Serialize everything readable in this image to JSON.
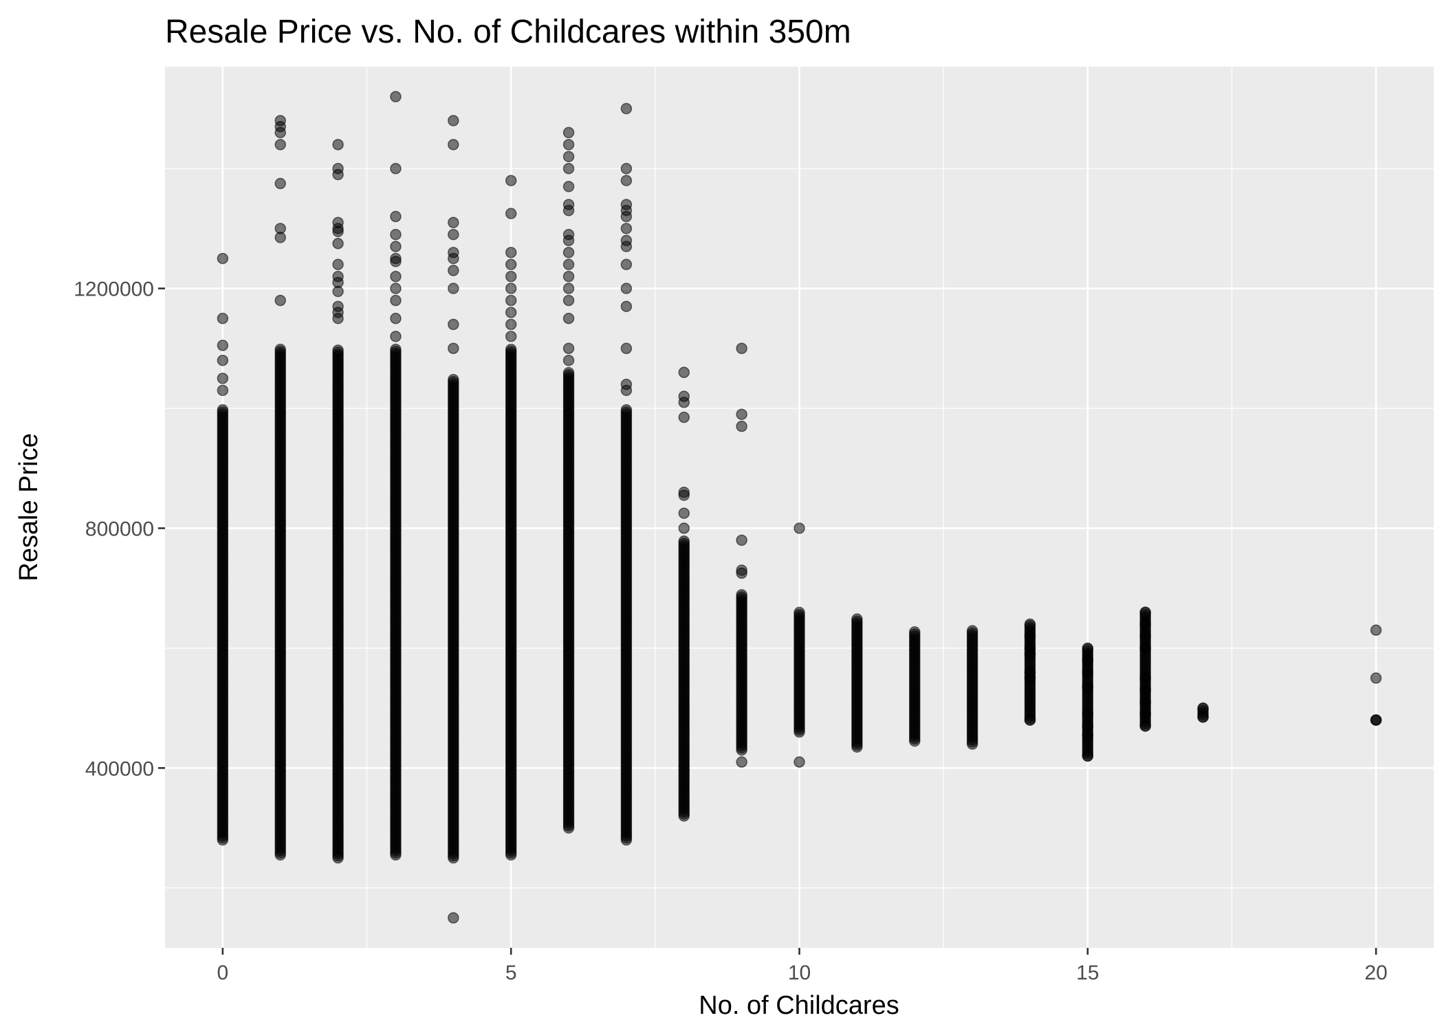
{
  "chart_data": {
    "type": "scatter",
    "title": "Resale Price vs. No. of Childcares within 350m",
    "xlabel": "No. of Childcares",
    "ylabel": "Resale Price",
    "xlim": [
      -1,
      21
    ],
    "ylim": [
      100000,
      1570000
    ],
    "x_ticks": [
      0,
      5,
      10,
      15,
      20
    ],
    "x_tick_labels": [
      "0",
      "5",
      "10",
      "15",
      "20"
    ],
    "y_ticks": [
      400000,
      800000,
      1200000
    ],
    "y_tick_labels": [
      "400000",
      "800000",
      "1200000"
    ],
    "grid": true,
    "legend": "none",
    "point_color": "#000000",
    "point_alpha": 0.5,
    "panel_color": "#ebebeb",
    "columns": [
      {
        "x": 0,
        "dense_range": [
          280000,
          1000000
        ],
        "points": [
          1250000,
          1150000,
          1105000,
          1080000,
          1050000,
          1030000
        ]
      },
      {
        "x": 1,
        "dense_range": [
          255000,
          1100000
        ],
        "points": [
          1480000,
          1470000,
          1460000,
          1440000,
          1375000,
          1300000,
          1285000,
          1180000
        ]
      },
      {
        "x": 2,
        "dense_range": [
          250000,
          1100000
        ],
        "points": [
          1440000,
          1400000,
          1390000,
          1310000,
          1300000,
          1295000,
          1275000,
          1240000,
          1220000,
          1210000,
          1195000,
          1170000,
          1160000,
          1150000
        ]
      },
      {
        "x": 3,
        "dense_range": [
          255000,
          1100000
        ],
        "points": [
          1520000,
          1400000,
          1320000,
          1290000,
          1270000,
          1250000,
          1245000,
          1220000,
          1200000,
          1180000,
          1150000,
          1120000
        ]
      },
      {
        "x": 4,
        "dense_range": [
          250000,
          1050000
        ],
        "points": [
          1480000,
          1440000,
          1310000,
          1290000,
          1260000,
          1250000,
          1230000,
          1200000,
          1140000,
          1100000,
          150000
        ]
      },
      {
        "x": 5,
        "dense_range": [
          255000,
          1100000
        ],
        "points": [
          1380000,
          1325000,
          1260000,
          1240000,
          1220000,
          1200000,
          1180000,
          1160000,
          1140000,
          1120000
        ]
      },
      {
        "x": 6,
        "dense_range": [
          300000,
          1060000
        ],
        "points": [
          1460000,
          1440000,
          1420000,
          1400000,
          1370000,
          1340000,
          1330000,
          1290000,
          1280000,
          1260000,
          1240000,
          1220000,
          1200000,
          1180000,
          1150000,
          1100000,
          1080000
        ]
      },
      {
        "x": 7,
        "dense_range": [
          280000,
          1000000
        ],
        "points": [
          1500000,
          1400000,
          1380000,
          1340000,
          1330000,
          1320000,
          1300000,
          1280000,
          1270000,
          1240000,
          1200000,
          1170000,
          1100000,
          1040000,
          1030000
        ]
      },
      {
        "x": 8,
        "dense_range": [
          320000,
          780000
        ],
        "points": [
          1060000,
          1020000,
          1010000,
          985000,
          860000,
          855000,
          825000,
          800000
        ]
      },
      {
        "x": 9,
        "dense_range": [
          430000,
          690000
        ],
        "points": [
          1100000,
          990000,
          970000,
          780000,
          730000,
          725000,
          410000
        ]
      },
      {
        "x": 10,
        "dense_range": [
          460000,
          660000
        ],
        "points": [
          800000,
          410000
        ]
      },
      {
        "x": 11,
        "dense_range": [
          435000,
          650000
        ],
        "points": []
      },
      {
        "x": 12,
        "dense_range": [
          445000,
          630000
        ],
        "points": []
      },
      {
        "x": 13,
        "dense_range": [
          440000,
          630000
        ],
        "points": []
      },
      {
        "x": 14,
        "dense_range": [
          480000,
          640000
        ],
        "points": [
          640000,
          620000,
          600000,
          590000,
          560000,
          550000,
          480000
        ]
      },
      {
        "x": 15,
        "dense_range": [
          420000,
          600000
        ],
        "points": [
          600000,
          580000,
          560000,
          535000,
          490000,
          470000,
          455000,
          420000
        ]
      },
      {
        "x": 16,
        "dense_range": [
          470000,
          660000
        ],
        "points": [
          660000,
          640000,
          620000,
          600000,
          550000,
          530000,
          510000,
          490000,
          470000
        ]
      },
      {
        "x": 17,
        "dense_range": [
          485000,
          500000
        ],
        "points": [
          500000,
          485000
        ]
      },
      {
        "x": 20,
        "dense_range": [
          480000,
          480000
        ],
        "points": [
          630000,
          550000,
          480000
        ]
      }
    ]
  }
}
